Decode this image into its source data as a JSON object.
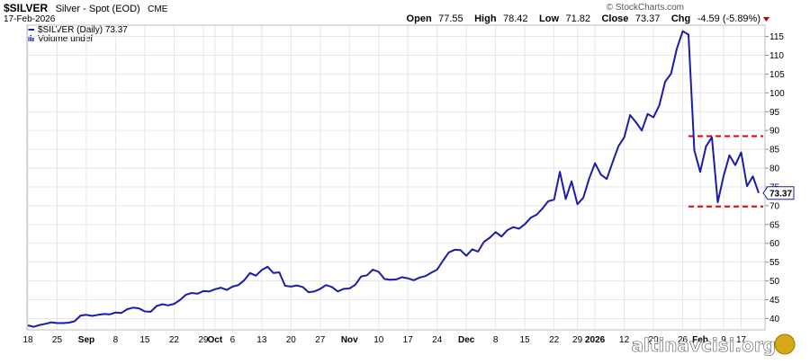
{
  "header": {
    "symbol": "$SILVER",
    "name": "Silver - Spot (EOD)",
    "exchange": "CME",
    "date": "17-Feb-2026",
    "open_label": "Open",
    "open": "77.55",
    "high_label": "High",
    "high": "78.42",
    "low_label": "Low",
    "low": "71.82",
    "close_label": "Close",
    "close": "73.37",
    "chg_label": "Chg",
    "chg": "-4.59 (-5.89%)",
    "source": "© StockCharts.com"
  },
  "legend": {
    "series_label": "$SILVER (Daily) 73.37",
    "volume_label": "Volume undef"
  },
  "watermark": "altinavcisi.org",
  "last_price_tag": "73.37",
  "colors": {
    "line": "#1c1ca8",
    "reference": "#e00000",
    "down": "#c00000"
  },
  "chart_data": {
    "type": "line",
    "title": "",
    "xlabel": "",
    "ylabel": "",
    "ylim": [
      37,
      118
    ],
    "y_ticks": [
      40,
      45,
      50,
      55,
      60,
      65,
      70,
      75,
      80,
      85,
      90,
      95,
      100,
      105,
      110,
      115
    ],
    "y_axis_side": "right",
    "x_ticks": [
      {
        "i": 0,
        "label": "18",
        "bold": false
      },
      {
        "i": 5,
        "label": "25",
        "bold": false
      },
      {
        "i": 10,
        "label": "Sep",
        "bold": true
      },
      {
        "i": 15,
        "label": "8",
        "bold": false
      },
      {
        "i": 20,
        "label": "15",
        "bold": false
      },
      {
        "i": 25,
        "label": "22",
        "bold": false
      },
      {
        "i": 30,
        "label": "29",
        "bold": false
      },
      {
        "i": 32,
        "label": "Oct",
        "bold": true
      },
      {
        "i": 35,
        "label": "6",
        "bold": false
      },
      {
        "i": 40,
        "label": "13",
        "bold": false
      },
      {
        "i": 45,
        "label": "20",
        "bold": false
      },
      {
        "i": 50,
        "label": "27",
        "bold": false
      },
      {
        "i": 55,
        "label": "Nov",
        "bold": true
      },
      {
        "i": 60,
        "label": "10",
        "bold": false
      },
      {
        "i": 65,
        "label": "17",
        "bold": false
      },
      {
        "i": 70,
        "label": "24",
        "bold": false
      },
      {
        "i": 75,
        "label": "Dec",
        "bold": true
      },
      {
        "i": 80,
        "label": "8",
        "bold": false
      },
      {
        "i": 85,
        "label": "15",
        "bold": false
      },
      {
        "i": 90,
        "label": "22",
        "bold": false
      },
      {
        "i": 94,
        "label": "29",
        "bold": false
      },
      {
        "i": 97,
        "label": "2026",
        "bold": true
      },
      {
        "i": 102,
        "label": "12",
        "bold": false
      },
      {
        "i": 107,
        "label": "20",
        "bold": false
      },
      {
        "i": 112,
        "label": "26",
        "bold": false
      },
      {
        "i": 115,
        "label": "Feb",
        "bold": true
      },
      {
        "i": 119,
        "label": "9",
        "bold": false
      },
      {
        "i": 122,
        "label": "17",
        "bold": false
      }
    ],
    "reference_lines": [
      88.5,
      69.8
    ],
    "reference_start_index": 113,
    "series": [
      {
        "values": [
          38.2,
          37.8,
          38.3,
          38.6,
          39.0,
          38.8,
          38.8,
          38.9,
          39.3,
          40.8,
          41.0,
          40.7,
          41.0,
          41.2,
          41.1,
          41.6,
          41.5,
          42.5,
          42.9,
          42.7,
          41.9,
          41.8,
          43.3,
          43.8,
          43.5,
          43.9,
          44.9,
          46.3,
          46.8,
          46.6,
          47.3,
          47.2,
          47.8,
          48.2,
          47.6,
          48.5,
          48.9,
          50.2,
          52.1,
          51.4,
          52.9,
          53.8,
          52.1,
          52.3,
          48.7,
          48.5,
          48.8,
          48.4,
          47.0,
          47.2,
          47.9,
          48.9,
          48.4,
          47.2,
          47.9,
          48.0,
          49.0,
          51.2,
          51.5,
          53.0,
          52.4,
          50.5,
          50.3,
          50.4,
          51.0,
          50.7,
          50.2,
          50.9,
          51.3,
          52.2,
          53.0,
          55.4,
          57.6,
          58.3,
          58.2,
          56.7,
          58.4,
          57.8,
          60.4,
          61.5,
          63.0,
          61.8,
          63.5,
          64.3,
          63.9,
          65.1,
          66.8,
          67.6,
          69.2,
          71.2,
          71.6,
          79.0,
          71.8,
          76.5,
          70.4,
          72.1,
          77.2,
          81.3,
          78.3,
          77.1,
          81.5,
          85.8,
          88.2,
          94.1,
          92.2,
          90.0,
          94.4,
          93.5,
          96.7,
          103.0,
          105.1,
          111.8,
          116.4,
          115.5,
          84.7,
          79.0,
          85.8,
          88.2,
          70.9,
          77.9,
          83.4,
          80.8,
          84.2,
          75.2,
          77.8,
          73.4
        ]
      }
    ]
  }
}
